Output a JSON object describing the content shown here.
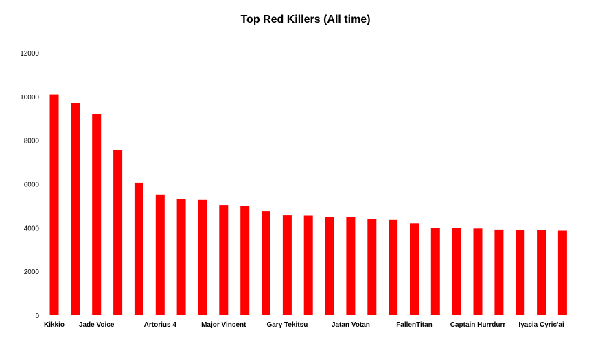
{
  "chart_data": {
    "type": "bar",
    "title": "Top Red Killers (All time)",
    "xlabel": "",
    "ylabel": "",
    "ylim": [
      0,
      12000
    ],
    "yticks": [
      0,
      2000,
      4000,
      6000,
      8000,
      10000,
      12000
    ],
    "grid": false,
    "legend": "none",
    "bar_color": "#ff0000",
    "categories": [
      "Kikkio",
      "",
      "Jade Voice",
      "",
      "",
      "Artorius 4",
      "",
      "",
      "Major Vincent",
      "",
      "",
      "Gary Tekitsu",
      "",
      "",
      "Jatan Votan",
      "",
      "",
      "FallenTitan",
      "",
      "",
      "Captain Hurrdurr",
      "",
      "",
      "Iyacia Cyric'ai",
      ""
    ],
    "values": [
      10100,
      9700,
      9200,
      7550,
      6050,
      5520,
      5320,
      5270,
      5040,
      5010,
      4760,
      4570,
      4560,
      4510,
      4500,
      4410,
      4360,
      4190,
      4010,
      3980,
      3970,
      3920,
      3910,
      3910,
      3870
    ]
  }
}
